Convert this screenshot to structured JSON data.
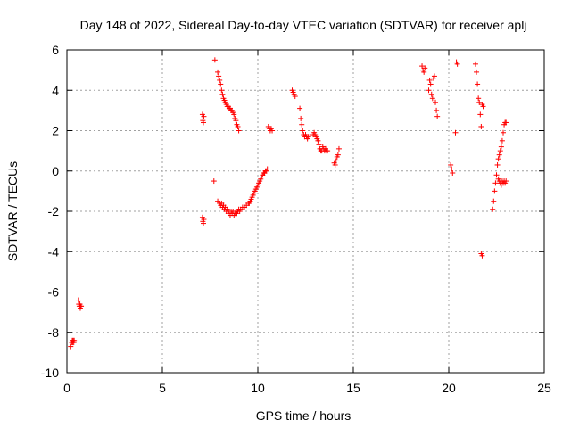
{
  "chart_data": {
    "type": "scatter",
    "title": "Day 148 of 2022, Sidereal Day-to-day VTEC variation (SDTVAR) for receiver aplj",
    "xlabel": "GPS time / hours",
    "ylabel": "SDTVAR / TECUs",
    "xlim": [
      0,
      25
    ],
    "ylim": [
      -10,
      6
    ],
    "xticks": [
      0,
      5,
      10,
      15,
      20,
      25
    ],
    "yticks": [
      -10,
      -8,
      -6,
      -4,
      -2,
      0,
      2,
      4,
      6
    ],
    "xtick_labels": [
      "0",
      "5",
      "10",
      "15",
      "20",
      "25"
    ],
    "ytick_labels": [
      "-10",
      "-8",
      "-6",
      "-4",
      "-2",
      "0",
      "2",
      "4",
      "6"
    ],
    "grid": true,
    "marker": "+",
    "color": "#ff0000",
    "series": [
      {
        "name": "SDTVAR",
        "points": [
          [
            0.2,
            -8.7
          ],
          [
            0.25,
            -8.5
          ],
          [
            0.28,
            -8.4
          ],
          [
            0.3,
            -8.5
          ],
          [
            0.33,
            -8.4
          ],
          [
            0.36,
            -8.5
          ],
          [
            0.38,
            -8.4
          ],
          [
            0.6,
            -6.4
          ],
          [
            0.62,
            -6.6
          ],
          [
            0.65,
            -6.7
          ],
          [
            0.68,
            -6.6
          ],
          [
            0.7,
            -6.8
          ],
          [
            0.72,
            -6.7
          ],
          [
            0.75,
            -6.7
          ],
          [
            7.1,
            2.8
          ],
          [
            7.12,
            2.5
          ],
          [
            7.15,
            2.4
          ],
          [
            7.17,
            2.7
          ],
          [
            7.1,
            -2.3
          ],
          [
            7.12,
            -2.5
          ],
          [
            7.15,
            -2.6
          ],
          [
            7.17,
            -2.4
          ],
          [
            7.7,
            -0.5
          ],
          [
            7.75,
            5.5
          ],
          [
            7.9,
            -1.5
          ],
          [
            8.0,
            -1.6
          ],
          [
            8.05,
            -1.7
          ],
          [
            8.1,
            -1.6
          ],
          [
            8.15,
            -1.8
          ],
          [
            8.2,
            -1.7
          ],
          [
            8.25,
            -1.9
          ],
          [
            8.3,
            -1.8
          ],
          [
            8.35,
            -2.0
          ],
          [
            8.4,
            -1.9
          ],
          [
            8.45,
            -2.1
          ],
          [
            8.5,
            -2.0
          ],
          [
            8.55,
            -2.2
          ],
          [
            8.6,
            -2.0
          ],
          [
            8.65,
            -2.1
          ],
          [
            8.7,
            -2.0
          ],
          [
            8.75,
            -2.2
          ],
          [
            8.8,
            -2.1
          ],
          [
            8.85,
            -2.0
          ],
          [
            8.9,
            -2.1
          ],
          [
            8.95,
            -2.0
          ],
          [
            9.0,
            -1.9
          ],
          [
            9.05,
            -2.0
          ],
          [
            9.1,
            -1.9
          ],
          [
            9.2,
            -1.8
          ],
          [
            9.3,
            -1.8
          ],
          [
            9.4,
            -1.7
          ],
          [
            9.5,
            -1.6
          ],
          [
            9.55,
            -1.6
          ],
          [
            9.6,
            -1.5
          ],
          [
            9.65,
            -1.4
          ],
          [
            9.7,
            -1.3
          ],
          [
            9.75,
            -1.2
          ],
          [
            9.8,
            -1.1
          ],
          [
            9.85,
            -1.0
          ],
          [
            9.9,
            -0.9
          ],
          [
            9.95,
            -0.8
          ],
          [
            10.0,
            -0.7
          ],
          [
            10.05,
            -0.6
          ],
          [
            10.1,
            -0.5
          ],
          [
            10.15,
            -0.4
          ],
          [
            10.2,
            -0.3
          ],
          [
            10.25,
            -0.2
          ],
          [
            10.3,
            -0.1
          ],
          [
            10.35,
            -0.1
          ],
          [
            10.4,
            0.0
          ],
          [
            10.45,
            0.0
          ],
          [
            10.5,
            0.1
          ],
          [
            7.9,
            4.9
          ],
          [
            7.95,
            4.7
          ],
          [
            8.0,
            4.5
          ],
          [
            8.05,
            4.3
          ],
          [
            8.1,
            4.0
          ],
          [
            8.15,
            3.8
          ],
          [
            8.2,
            3.6
          ],
          [
            8.25,
            3.5
          ],
          [
            8.3,
            3.4
          ],
          [
            8.35,
            3.3
          ],
          [
            8.4,
            3.2
          ],
          [
            8.45,
            3.2
          ],
          [
            8.5,
            3.1
          ],
          [
            8.55,
            3.1
          ],
          [
            8.6,
            3.0
          ],
          [
            8.65,
            3.0
          ],
          [
            8.7,
            2.9
          ],
          [
            8.75,
            2.8
          ],
          [
            8.8,
            2.6
          ],
          [
            8.85,
            2.5
          ],
          [
            8.9,
            2.3
          ],
          [
            8.95,
            2.2
          ],
          [
            9.0,
            2.0
          ],
          [
            10.55,
            2.2
          ],
          [
            10.6,
            2.1
          ],
          [
            10.65,
            2.0
          ],
          [
            10.7,
            2.1
          ],
          [
            10.75,
            2.0
          ],
          [
            11.8,
            4.0
          ],
          [
            11.85,
            3.9
          ],
          [
            11.9,
            3.8
          ],
          [
            11.95,
            3.7
          ],
          [
            12.2,
            3.1
          ],
          [
            12.25,
            2.6
          ],
          [
            12.3,
            2.3
          ],
          [
            12.35,
            2.0
          ],
          [
            12.4,
            1.8
          ],
          [
            12.45,
            1.7
          ],
          [
            12.5,
            1.8
          ],
          [
            12.55,
            1.7
          ],
          [
            12.6,
            1.6
          ],
          [
            12.65,
            1.7
          ],
          [
            12.9,
            1.8
          ],
          [
            12.95,
            1.9
          ],
          [
            13.0,
            1.8
          ],
          [
            13.05,
            1.7
          ],
          [
            13.1,
            1.6
          ],
          [
            13.15,
            1.5
          ],
          [
            13.2,
            1.3
          ],
          [
            13.25,
            1.1
          ],
          [
            13.3,
            1.0
          ],
          [
            13.35,
            1.0
          ],
          [
            13.4,
            1.2
          ],
          [
            13.45,
            1.1
          ],
          [
            13.5,
            1.0
          ],
          [
            13.55,
            1.1
          ],
          [
            13.6,
            1.0
          ],
          [
            13.65,
            1.0
          ],
          [
            14.0,
            0.4
          ],
          [
            14.05,
            0.3
          ],
          [
            14.1,
            0.5
          ],
          [
            14.15,
            0.7
          ],
          [
            14.2,
            0.8
          ],
          [
            14.25,
            1.1
          ],
          [
            18.6,
            5.2
          ],
          [
            18.65,
            5.0
          ],
          [
            18.7,
            4.9
          ],
          [
            18.75,
            5.1
          ],
          [
            18.95,
            4.0
          ],
          [
            19.0,
            4.5
          ],
          [
            19.05,
            4.3
          ],
          [
            19.1,
            3.8
          ],
          [
            19.15,
            3.6
          ],
          [
            19.2,
            4.6
          ],
          [
            19.25,
            4.7
          ],
          [
            19.3,
            3.4
          ],
          [
            19.35,
            3.0
          ],
          [
            19.4,
            2.7
          ],
          [
            20.1,
            0.3
          ],
          [
            20.15,
            0.1
          ],
          [
            20.2,
            -0.1
          ],
          [
            20.35,
            1.9
          ],
          [
            20.4,
            5.4
          ],
          [
            20.45,
            5.3
          ],
          [
            21.4,
            5.3
          ],
          [
            21.45,
            4.9
          ],
          [
            21.5,
            4.3
          ],
          [
            21.55,
            3.6
          ],
          [
            21.6,
            3.4
          ],
          [
            21.65,
            2.8
          ],
          [
            21.7,
            2.2
          ],
          [
            21.75,
            3.3
          ],
          [
            21.8,
            3.2
          ],
          [
            21.7,
            -4.1
          ],
          [
            21.75,
            -4.2
          ],
          [
            22.3,
            -1.9
          ],
          [
            22.35,
            -1.5
          ],
          [
            22.4,
            -1.0
          ],
          [
            22.45,
            -0.6
          ],
          [
            22.5,
            -0.2
          ],
          [
            22.55,
            0.3
          ],
          [
            22.6,
            0.6
          ],
          [
            22.65,
            0.8
          ],
          [
            22.7,
            1.0
          ],
          [
            22.75,
            1.2
          ],
          [
            22.8,
            1.5
          ],
          [
            22.85,
            1.9
          ],
          [
            22.9,
            2.3
          ],
          [
            22.95,
            2.4
          ],
          [
            23.0,
            2.4
          ],
          [
            22.6,
            -0.4
          ],
          [
            22.65,
            -0.5
          ],
          [
            22.7,
            -0.6
          ],
          [
            22.75,
            -0.7
          ],
          [
            22.8,
            -0.5
          ],
          [
            22.85,
            -0.6
          ],
          [
            22.9,
            -0.5
          ],
          [
            22.95,
            -0.6
          ],
          [
            23.0,
            -0.5
          ]
        ]
      }
    ]
  }
}
